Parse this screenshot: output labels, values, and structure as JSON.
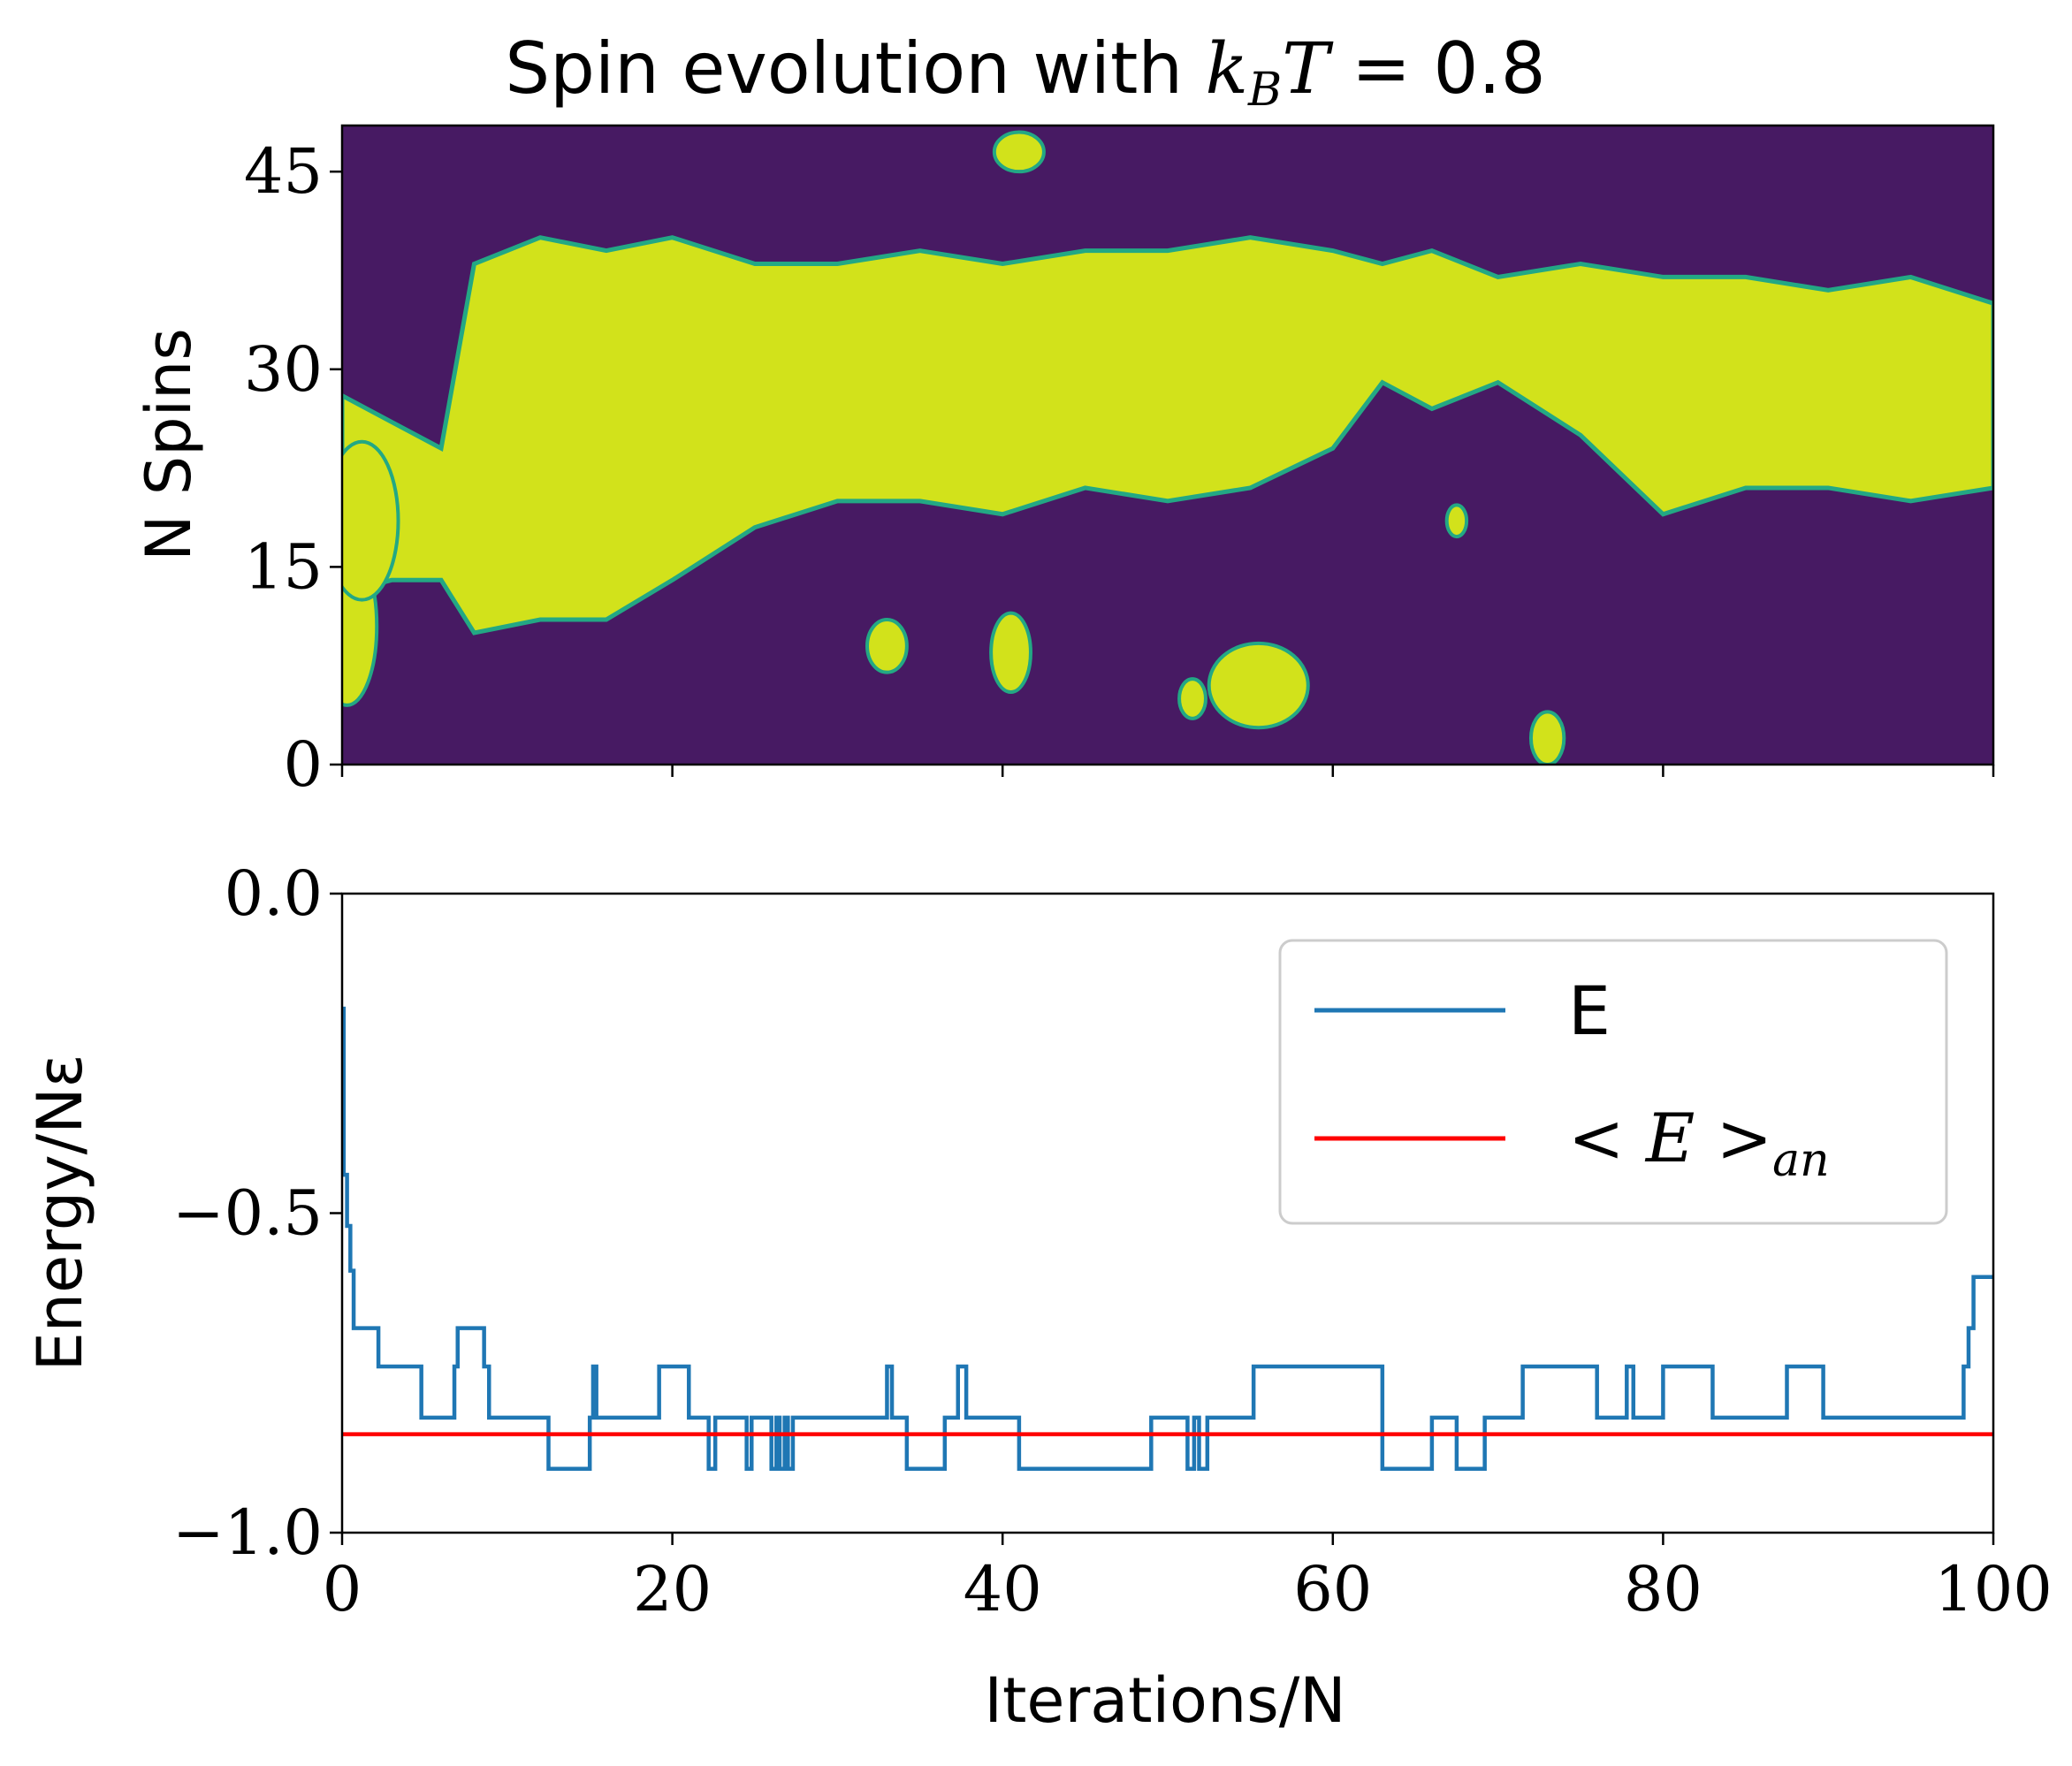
{
  "chart_data": [
    {
      "type": "heatmap",
      "title": "Spin evolution with k_B T = 0.8",
      "title_parts": {
        "prefix": "Spin evolution with ",
        "var": "k",
        "sub": "B",
        "var2": "T",
        "suffix": " = 0.8"
      },
      "ylabel": "N Spins",
      "xlabel": "",
      "xlim": [
        0,
        100
      ],
      "ylim": [
        0,
        48.5
      ],
      "yticks": [
        0,
        15,
        30,
        45
      ],
      "xticks": [
        0,
        20,
        40,
        60,
        80,
        100
      ],
      "xtick_labels_shown": false,
      "grid": false,
      "colors": {
        "spin_down": "#471a63",
        "spin_up": "#d2e21b",
        "edge": "#23a884"
      },
      "spin_up_boundaries": [
        [
          0,
          13,
          28
        ],
        [
          3,
          14,
          26
        ],
        [
          6,
          14,
          24
        ],
        [
          8,
          10,
          38
        ],
        [
          12,
          11,
          40
        ],
        [
          16,
          11,
          39
        ],
        [
          20,
          14,
          40
        ],
        [
          25,
          18,
          38
        ],
        [
          30,
          20,
          38
        ],
        [
          35,
          20,
          39
        ],
        [
          40,
          19,
          38
        ],
        [
          45,
          21,
          39
        ],
        [
          50,
          20,
          39
        ],
        [
          55,
          21,
          40
        ],
        [
          60,
          24,
          39
        ],
        [
          63,
          29,
          38
        ],
        [
          66,
          27,
          39
        ],
        [
          70,
          29,
          37
        ],
        [
          75,
          25,
          38
        ],
        [
          80,
          19,
          37
        ],
        [
          85,
          21,
          37
        ],
        [
          90,
          21,
          36
        ],
        [
          95,
          20,
          37
        ],
        [
          100,
          21,
          35
        ]
      ],
      "spin_up_blobs": [
        [
          0.3,
          10.5,
          1.8,
          6
        ],
        [
          1.2,
          18.5,
          2.2,
          6
        ],
        [
          55.5,
          6,
          3,
          3.2
        ],
        [
          51.5,
          5,
          0.8,
          1.5
        ],
        [
          33,
          9,
          1.2,
          2
        ],
        [
          73,
          2,
          1,
          2
        ],
        [
          67.5,
          18.5,
          0.6,
          1.2
        ],
        [
          40.5,
          8.5,
          1.2,
          3
        ],
        [
          41,
          46.5,
          1.5,
          1.5
        ]
      ]
    },
    {
      "type": "line",
      "ylabel": "Energy/Nε",
      "xlabel": "Iterations/N",
      "xlim": [
        0,
        100
      ],
      "ylim": [
        -1.0,
        0.0
      ],
      "xticks": [
        0,
        20,
        40,
        60,
        80,
        100
      ],
      "xtick_labels": [
        "0",
        "20",
        "40",
        "60",
        "80",
        "100"
      ],
      "yticks": [
        0.0,
        -0.5,
        -1.0
      ],
      "ytick_labels": [
        "0.0",
        "−0.5",
        "−1.0"
      ],
      "grid": false,
      "legend_position": "upper-right",
      "series": [
        {
          "name": "E",
          "color": "#1f77b4",
          "step": true,
          "x": [
            0,
            0.1,
            0.3,
            0.5,
            0.7,
            2.2,
            4.8,
            6.8,
            7.0,
            8.6,
            8.9,
            12.5,
            15.0,
            15.2,
            15.4,
            19.2,
            21.0,
            22.0,
            22.2,
            22.6,
            24.5,
            24.8,
            26.0,
            26.3,
            26.5,
            26.8,
            27.0,
            27.3,
            31.0,
            33.0,
            33.3,
            34.2,
            36.5,
            37.3,
            37.8,
            41.0,
            49.0,
            51.2,
            51.6,
            51.9,
            52.4,
            54.8,
            55.2,
            63.0,
            66.0,
            67.5,
            69.2,
            71.5,
            76.0,
            77.8,
            78.2,
            80.0,
            83.0,
            87.5,
            89.7,
            98.2,
            98.5,
            98.8,
            99.5,
            100
          ],
          "y": [
            -0.18,
            -0.44,
            -0.52,
            -0.59,
            -0.68,
            -0.74,
            -0.82,
            -0.74,
            -0.68,
            -0.74,
            -0.82,
            -0.9,
            -0.82,
            -0.74,
            -0.82,
            -0.74,
            -0.82,
            -0.82,
            -0.9,
            -0.82,
            -0.9,
            -0.82,
            -0.9,
            -0.82,
            -0.9,
            -0.82,
            -0.9,
            -0.82,
            -0.82,
            -0.74,
            -0.82,
            -0.9,
            -0.82,
            -0.74,
            -0.82,
            -0.9,
            -0.82,
            -0.9,
            -0.82,
            -0.9,
            -0.82,
            -0.82,
            -0.74,
            -0.9,
            -0.82,
            -0.9,
            -0.82,
            -0.74,
            -0.82,
            -0.74,
            -0.82,
            -0.74,
            -0.82,
            -0.74,
            -0.82,
            -0.74,
            -0.68,
            -0.6,
            -0.6,
            -0.6
          ]
        },
        {
          "name": "< E >_an",
          "color": "#ff0000",
          "x": [
            0,
            100
          ],
          "y": [
            -0.846,
            -0.846
          ]
        }
      ],
      "legend": [
        {
          "label": "E",
          "color": "#1f77b4"
        },
        {
          "label_main": "< E >",
          "label_sub": "an",
          "color": "#ff0000"
        }
      ]
    }
  ]
}
